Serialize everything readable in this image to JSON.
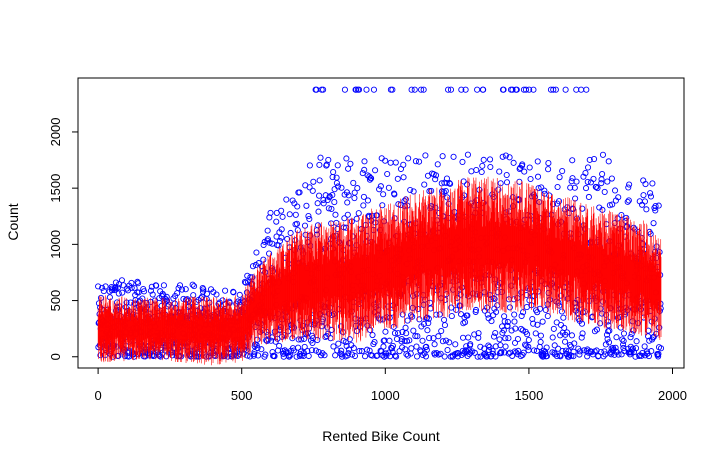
{
  "chart_data": {
    "type": "scatter",
    "title": "",
    "xlabel": "Rented Bike Count",
    "ylabel": "Count",
    "xlim": [
      -70,
      2040
    ],
    "ylim": [
      -100,
      2480
    ],
    "xticks": [
      0,
      500,
      1000,
      1500,
      2000
    ],
    "yticks": [
      0,
      500,
      1000,
      1500,
      2000
    ],
    "grid": false,
    "legend": "none",
    "n_points": 1960,
    "series": [
      {
        "kind": "points",
        "marker": "open-circle",
        "color": "#0000ff",
        "trend_envelope": [
          {
            "x": 0,
            "low": 0,
            "high": 700
          },
          {
            "x": 300,
            "low": 0,
            "high": 650
          },
          {
            "x": 500,
            "low": 0,
            "high": 600
          },
          {
            "x": 600,
            "low": 0,
            "high": 1300
          },
          {
            "x": 700,
            "low": 0,
            "high": 1500
          },
          {
            "x": 800,
            "low": 0,
            "high": 2376
          },
          {
            "x": 1000,
            "low": 0,
            "high": 2376
          },
          {
            "x": 1300,
            "low": 0,
            "high": 2376
          },
          {
            "x": 1500,
            "low": 0,
            "high": 2376
          },
          {
            "x": 1700,
            "low": 0,
            "high": 2376
          },
          {
            "x": 1800,
            "low": 0,
            "high": 1600
          },
          {
            "x": 1960,
            "low": 0,
            "high": 1550
          }
        ]
      },
      {
        "kind": "vertical-lines",
        "color": "#ff0000",
        "trend": [
          {
            "x": 0,
            "center": 250,
            "spread": 250
          },
          {
            "x": 200,
            "center": 250,
            "spread": 230
          },
          {
            "x": 400,
            "center": 230,
            "spread": 260
          },
          {
            "x": 500,
            "center": 250,
            "spread": 250
          },
          {
            "x": 550,
            "center": 450,
            "spread": 300
          },
          {
            "x": 700,
            "center": 650,
            "spread": 420
          },
          {
            "x": 900,
            "center": 700,
            "spread": 480
          },
          {
            "x": 1100,
            "center": 880,
            "spread": 480
          },
          {
            "x": 1300,
            "center": 1000,
            "spread": 520
          },
          {
            "x": 1500,
            "center": 980,
            "spread": 480
          },
          {
            "x": 1700,
            "center": 820,
            "spread": 450
          },
          {
            "x": 1900,
            "center": 700,
            "spread": 430
          },
          {
            "x": 1960,
            "center": 600,
            "spread": 380
          }
        ]
      }
    ]
  }
}
